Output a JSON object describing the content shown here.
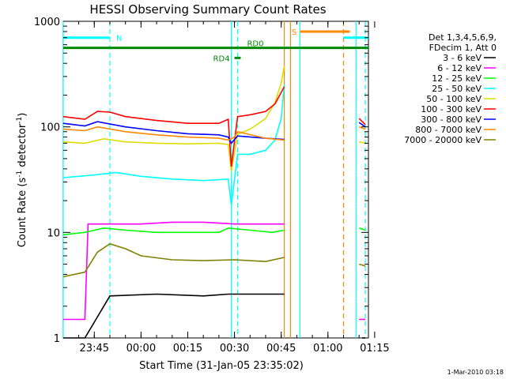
{
  "chart_data": {
    "type": "line",
    "title": "HESSI Observing Summary Count Rates",
    "xlabel": "Start Time (31-Jan-05 23:35:02)",
    "ylabel_main": "Count Rate (s",
    "ylabel_sup1": "-1",
    "ylabel_mid": " detector",
    "ylabel_sup2": "-1",
    "ylabel_end": ")",
    "y_scale": "log",
    "xlim": [
      "23:35:02",
      "01:13:00"
    ],
    "ylim": [
      1,
      1000
    ],
    "grid": false,
    "legend_position": "right",
    "x_ticks": [
      "23:45",
      "00:00",
      "00:15",
      "00:30",
      "00:45",
      "01:00",
      "01:15"
    ],
    "y_ticks": [
      "1",
      "10",
      "100",
      "1000"
    ],
    "legend_header": [
      "Det 1,3,4,5,6,9,",
      "FDecim 1, Att 0"
    ],
    "series": [
      {
        "name": "3 - 6 keV",
        "color": "#000000",
        "points": [
          [
            "23:35",
            1.0
          ],
          [
            "23:42",
            1.0
          ],
          [
            "23:50",
            2.5
          ],
          [
            "00:05",
            2.6
          ],
          [
            "00:20",
            2.5
          ],
          [
            "00:28",
            2.6
          ],
          [
            "00:35",
            2.6
          ],
          [
            "00:40",
            2.6
          ],
          [
            "00:46",
            2.6
          ]
        ]
      },
      {
        "name": "6 - 12 keV",
        "color": "#ff00ff",
        "points": [
          [
            "23:35",
            1.5
          ],
          [
            "23:42",
            1.5
          ],
          [
            "23:43",
            12
          ],
          [
            "23:50",
            12
          ],
          [
            "00:00",
            12
          ],
          [
            "00:10",
            12.5
          ],
          [
            "00:20",
            12.5
          ],
          [
            "00:30",
            12
          ],
          [
            "00:35",
            12
          ],
          [
            "00:42",
            12
          ],
          [
            "00:46",
            12
          ]
        ]
      },
      {
        "name": "12 - 25 keV",
        "color": "#00ff00",
        "points": [
          [
            "23:35",
            9.5
          ],
          [
            "23:42",
            10
          ],
          [
            "23:48",
            11
          ],
          [
            "23:55",
            10.5
          ],
          [
            "00:05",
            10
          ],
          [
            "00:15",
            10
          ],
          [
            "00:25",
            10
          ],
          [
            "00:28",
            11
          ],
          [
            "00:35",
            10.5
          ],
          [
            "00:42",
            10
          ],
          [
            "00:46",
            10.5
          ]
        ]
      },
      {
        "name": "25 - 50 keV",
        "color": "#00ffff",
        "points": [
          [
            "23:35",
            33
          ],
          [
            "23:40",
            34
          ],
          [
            "23:45",
            35
          ],
          [
            "23:52",
            37
          ],
          [
            "00:00",
            34
          ],
          [
            "00:10",
            32
          ],
          [
            "00:20",
            31
          ],
          [
            "00:28",
            32
          ],
          [
            "00:29",
            18
          ],
          [
            "00:31",
            55
          ],
          [
            "00:35",
            55
          ],
          [
            "00:40",
            60
          ],
          [
            "00:43",
            75
          ],
          [
            "00:45",
            120
          ],
          [
            "00:46",
            250
          ]
        ]
      },
      {
        "name": "50 - 100 keV",
        "color": "#dddd00",
        "points": [
          [
            "23:35",
            72
          ],
          [
            "23:42",
            70
          ],
          [
            "23:48",
            77
          ],
          [
            "23:55",
            72
          ],
          [
            "00:05",
            70
          ],
          [
            "00:15",
            69
          ],
          [
            "00:25",
            70
          ],
          [
            "00:28",
            68
          ],
          [
            "00:29",
            38
          ],
          [
            "00:31",
            85
          ],
          [
            "00:35",
            95
          ],
          [
            "00:40",
            120
          ],
          [
            "00:43",
            170
          ],
          [
            "00:45",
            260
          ],
          [
            "00:46",
            380
          ]
        ]
      },
      {
        "name": "100 - 300 keV",
        "color": "#ff0000",
        "points": [
          [
            "23:35",
            125
          ],
          [
            "23:42",
            118
          ],
          [
            "23:46",
            140
          ],
          [
            "23:50",
            138
          ],
          [
            "23:55",
            125
          ],
          [
            "00:05",
            115
          ],
          [
            "00:15",
            108
          ],
          [
            "00:25",
            108
          ],
          [
            "00:28",
            118
          ],
          [
            "00:29",
            42
          ],
          [
            "00:31",
            125
          ],
          [
            "00:35",
            130
          ],
          [
            "00:40",
            140
          ],
          [
            "00:43",
            165
          ],
          [
            "00:46",
            240
          ]
        ]
      },
      {
        "name": "300 - 800 keV",
        "color": "#0000ff",
        "points": [
          [
            "23:35",
            108
          ],
          [
            "23:42",
            102
          ],
          [
            "23:46",
            112
          ],
          [
            "23:55",
            100
          ],
          [
            "00:05",
            92
          ],
          [
            "00:15",
            86
          ],
          [
            "00:25",
            84
          ],
          [
            "00:28",
            80
          ],
          [
            "00:29",
            70
          ],
          [
            "00:31",
            82
          ],
          [
            "00:40",
            78
          ],
          [
            "00:46",
            76
          ]
        ]
      },
      {
        "name": "800 - 7000 keV",
        "color": "#ff8800",
        "points": [
          [
            "23:35",
            95
          ],
          [
            "23:42",
            92
          ],
          [
            "23:46",
            100
          ],
          [
            "23:55",
            90
          ],
          [
            "00:05",
            84
          ],
          [
            "00:15",
            80
          ],
          [
            "00:25",
            78
          ],
          [
            "00:28",
            75
          ],
          [
            "00:30",
            80
          ],
          [
            "00:31",
            90
          ],
          [
            "00:40",
            78
          ],
          [
            "00:46",
            75
          ]
        ]
      },
      {
        "name": "7000 - 20000 keV",
        "color": "#808000",
        "points": [
          [
            "23:35",
            3.8
          ],
          [
            "23:42",
            4.2
          ],
          [
            "23:46",
            6.5
          ],
          [
            "23:50",
            7.8
          ],
          [
            "23:55",
            7.0
          ],
          [
            "00:00",
            6.0
          ],
          [
            "00:10",
            5.5
          ],
          [
            "00:20",
            5.4
          ],
          [
            "00:30",
            5.5
          ],
          [
            "00:40",
            5.3
          ],
          [
            "00:46",
            5.8
          ]
        ]
      }
    ],
    "after_gap_series": [
      {
        "name": "3 - 6 keV",
        "color": "#000000",
        "points": [
          [
            "01:11",
            1.0
          ],
          [
            "01:12",
            1.0
          ]
        ]
      },
      {
        "name": "6 - 12 keV",
        "color": "#ff00ff",
        "points": [
          [
            "01:10",
            1.5
          ],
          [
            "01:12",
            1.5
          ]
        ]
      },
      {
        "name": "12 - 25 keV",
        "color": "#00ff00",
        "points": [
          [
            "01:10",
            11
          ],
          [
            "01:12",
            10.5
          ]
        ]
      },
      {
        "name": "50 - 100 keV",
        "color": "#dddd00",
        "points": [
          [
            "01:10",
            72
          ],
          [
            "01:12",
            70
          ]
        ]
      },
      {
        "name": "100 - 300 keV",
        "color": "#ff0000",
        "points": [
          [
            "01:10",
            120
          ],
          [
            "01:12",
            105
          ]
        ]
      },
      {
        "name": "300 - 800 keV",
        "color": "#0000ff",
        "points": [
          [
            "01:10",
            110
          ],
          [
            "01:12",
            100
          ]
        ]
      },
      {
        "name": "800 - 7000 keV",
        "color": "#ff8800",
        "points": [
          [
            "01:10",
            100
          ],
          [
            "01:12",
            95
          ]
        ]
      },
      {
        "name": "7000 - 20000 keV",
        "color": "#808000",
        "points": [
          [
            "01:10",
            5.0
          ],
          [
            "01:12",
            4.8
          ]
        ]
      }
    ],
    "state_bars": [
      {
        "label": "N",
        "color": "#00ffff",
        "y": 700,
        "segments": [
          [
            "23:35",
            "23:50"
          ],
          [
            "01:05",
            "01:13"
          ]
        ]
      },
      {
        "label": "S",
        "color": "#ff8800",
        "y": 800,
        "segments": [
          [
            "00:51",
            "01:07"
          ]
        ]
      },
      {
        "label": "RD0",
        "color": "#008800",
        "y": 560,
        "segments": [
          [
            "23:35",
            "01:13"
          ]
        ]
      },
      {
        "label": "RD4",
        "color": "#008800",
        "y": 450,
        "segments": [
          [
            "00:30",
            "00:32"
          ]
        ]
      }
    ],
    "vlines": [
      {
        "t": "23:35",
        "color": "#00ffff",
        "style": "solid"
      },
      {
        "t": "23:50",
        "color": "#00ffff",
        "style": "dashed"
      },
      {
        "t": "00:29",
        "color": "#00ffff",
        "style": "solid"
      },
      {
        "t": "00:31",
        "color": "#00ffff",
        "style": "dashed"
      },
      {
        "t": "00:46",
        "color": "#ff8800",
        "style": "solid"
      },
      {
        "t": "00:48",
        "color": "#ff8800",
        "style": "solid"
      },
      {
        "t": "00:51",
        "color": "#00ffff",
        "style": "solid"
      },
      {
        "t": "01:05",
        "color": "#ff8800",
        "style": "dashed"
      },
      {
        "t": "01:09",
        "color": "#00ffff",
        "style": "solid"
      },
      {
        "t": "01:12",
        "color": "#00ffff",
        "style": "dashed"
      }
    ]
  },
  "footer_stamp": "1-Mar-2010 03:18"
}
